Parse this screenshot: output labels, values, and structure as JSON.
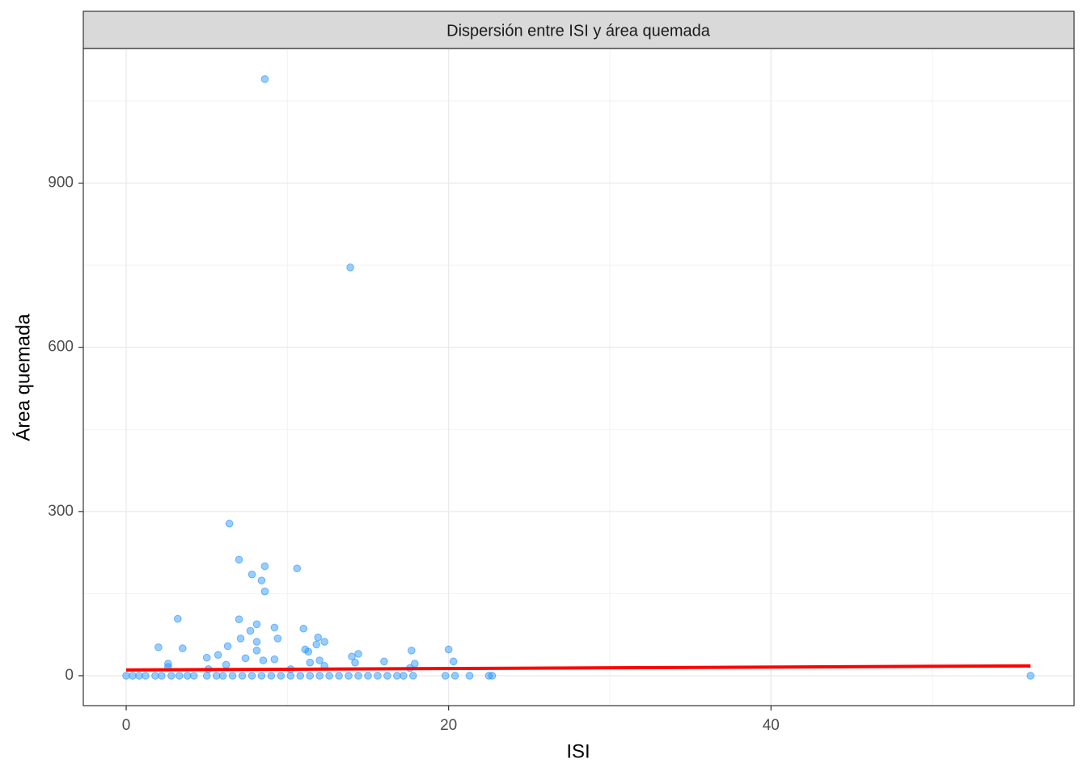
{
  "chart_data": {
    "type": "scatter",
    "title": "Dispersión entre ISI y área quemada",
    "x_label": "ISI",
    "y_label": "Área quemada",
    "x": [
      8.6,
      13.9,
      6.4,
      7.0,
      8.6,
      10.6,
      7.8,
      8.4,
      8.6,
      3.2,
      7.0,
      8.1,
      9.2,
      11.0,
      7.7,
      9.4,
      7.1,
      11.9,
      8.1,
      12.3,
      11.8,
      6.3,
      2.0,
      3.5,
      11.1,
      20.0,
      11.3,
      8.1,
      17.7,
      14.4,
      5.7,
      14.0,
      5.0,
      7.4,
      8.5,
      9.2,
      12.0,
      16.0,
      20.3,
      2.6,
      11.4,
      14.2,
      17.9,
      6.2,
      2.6,
      12.3,
      17.6,
      5.1,
      10.2,
      0,
      0.4,
      0.8,
      1.2,
      1.8,
      2.2,
      2.8,
      3.3,
      3.8,
      4.2,
      5.0,
      5.6,
      6.0,
      6.6,
      7.2,
      7.8,
      8.4,
      9.0,
      9.6,
      10.2,
      10.8,
      11.4,
      12.0,
      12.6,
      13.2,
      13.8,
      14.4,
      15.0,
      15.6,
      16.2,
      16.8,
      17.2,
      17.8,
      19.8,
      20.4,
      21.3,
      22.5,
      22.7,
      56.1
    ],
    "values": [
      1090,
      746,
      278,
      212,
      200,
      196,
      185,
      174,
      154,
      104,
      103,
      94,
      88,
      86,
      82,
      68,
      68,
      70,
      62,
      62,
      57,
      54,
      52,
      50,
      48,
      48,
      44,
      46,
      46,
      40,
      38,
      35,
      33,
      32,
      28,
      30,
      28,
      26,
      26,
      22,
      24,
      24,
      22,
      20,
      16,
      18,
      14,
      12,
      12,
      0,
      0,
      0,
      0,
      0,
      0,
      0,
      0,
      0,
      0,
      0,
      0,
      0,
      0,
      0,
      0,
      0,
      0,
      0,
      0,
      0,
      0,
      0,
      0,
      0,
      0,
      0,
      0,
      0,
      0,
      0,
      0,
      0,
      0,
      0,
      0,
      0,
      0,
      0
    ],
    "color": "#1e90ff",
    "fit_line": {
      "x": [
        0,
        56.1
      ],
      "values": [
        10.5,
        17.9
      ],
      "color": "#ff0000"
    },
    "xlim": [
      -2.66,
      58.8
    ],
    "ylim": [
      -54.7,
      1146
    ],
    "xticks": [
      0,
      20,
      40
    ],
    "yticks": [
      0,
      300,
      600,
      900
    ],
    "grid": true
  }
}
